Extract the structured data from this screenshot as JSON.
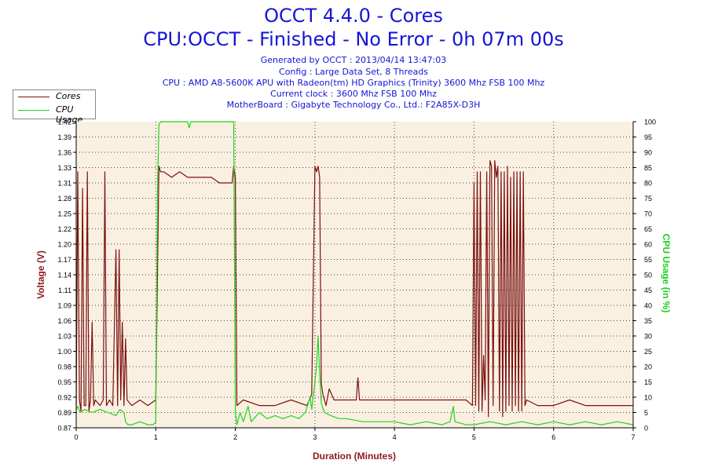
{
  "title": "OCCT 4.4.0 - Cores",
  "subtitle": "CPU:OCCT - Finished - No Error - 0h 07m 00s",
  "info_lines": [
    "Generated by OCCT : 2013/04/14 13:47:03",
    "Config : Large Data Set, 8 Threads",
    "CPU : AMD A8-5600K APU with Radeon(tm) HD Graphics (Trinity) 3600 Mhz FSB 100 Mhz",
    "Current clock : 3600 Mhz FSB 100 Mhz",
    "MotherBoard : Gigabyte Technology Co., Ltd.: F2A85X-D3H"
  ],
  "colors": {
    "cores": "#7a1010",
    "cpu_usage": "#1ed41e",
    "title": "#1515d6",
    "plot_bg": "#faf0e1",
    "left_axis": "#8b1a1a",
    "right_axis": "#19d019"
  },
  "chart_data": {
    "type": "line",
    "xlabel": "Duration (Minutes)",
    "ylabel": "Voltage (V)",
    "y2label": "CPU Usage (in %)",
    "xlim": [
      0,
      7
    ],
    "ylim": [
      0.87,
      1.42
    ],
    "y2lim": [
      0,
      100
    ],
    "x_ticks": [
      "0",
      "1",
      "2",
      "3",
      "4",
      "5",
      "6",
      "7"
    ],
    "y_ticks": [
      "0.87",
      "0.89",
      "0.92",
      "0.95",
      "0.98",
      "1.00",
      "1.03",
      "1.06",
      "1.09",
      "1.11",
      "1.14",
      "1.17",
      "1.20",
      "1.22",
      "1.25",
      "1.28",
      "1.31",
      "1.33",
      "1.36",
      "1.39",
      "1.42"
    ],
    "y2_ticks": [
      "0",
      "5",
      "10",
      "15",
      "20",
      "25",
      "30",
      "35",
      "40",
      "45",
      "50",
      "55",
      "60",
      "65",
      "70",
      "75",
      "80",
      "85",
      "90",
      "95",
      "100"
    ],
    "grid": true,
    "legend_position": "top-left",
    "series": [
      {
        "name": "Cores",
        "axis": "left",
        "points": [
          [
            0,
            0.91
          ],
          [
            0.02,
            1.33
          ],
          [
            0.04,
            0.92
          ],
          [
            0.06,
            0.9
          ],
          [
            0.08,
            1.3
          ],
          [
            0.1,
            0.91
          ],
          [
            0.12,
            0.91
          ],
          [
            0.14,
            1.33
          ],
          [
            0.16,
            0.9
          ],
          [
            0.18,
            0.92
          ],
          [
            0.2,
            1.06
          ],
          [
            0.22,
            0.91
          ],
          [
            0.24,
            0.92
          ],
          [
            0.3,
            0.91
          ],
          [
            0.34,
            0.92
          ],
          [
            0.36,
            1.33
          ],
          [
            0.38,
            0.91
          ],
          [
            0.42,
            0.92
          ],
          [
            0.46,
            0.91
          ],
          [
            0.5,
            1.19
          ],
          [
            0.52,
            0.91
          ],
          [
            0.54,
            1.19
          ],
          [
            0.56,
            0.92
          ],
          [
            0.58,
            1.06
          ],
          [
            0.6,
            0.91
          ],
          [
            0.62,
            1.03
          ],
          [
            0.64,
            0.92
          ],
          [
            0.7,
            0.91
          ],
          [
            0.8,
            0.92
          ],
          [
            0.9,
            0.91
          ],
          [
            1.0,
            0.92
          ],
          [
            1.04,
            1.34
          ],
          [
            1.06,
            1.33
          ],
          [
            1.1,
            1.33
          ],
          [
            1.2,
            1.32
          ],
          [
            1.3,
            1.33
          ],
          [
            1.4,
            1.32
          ],
          [
            1.5,
            1.32
          ],
          [
            1.6,
            1.32
          ],
          [
            1.7,
            1.32
          ],
          [
            1.8,
            1.31
          ],
          [
            1.9,
            1.31
          ],
          [
            1.96,
            1.31
          ],
          [
            1.98,
            1.34
          ],
          [
            2.0,
            1.32
          ],
          [
            2.02,
            0.91
          ],
          [
            2.1,
            0.92
          ],
          [
            2.3,
            0.91
          ],
          [
            2.5,
            0.91
          ],
          [
            2.7,
            0.92
          ],
          [
            2.9,
            0.91
          ],
          [
            2.96,
            0.93
          ],
          [
            3.0,
            1.34
          ],
          [
            3.02,
            1.33
          ],
          [
            3.04,
            1.34
          ],
          [
            3.06,
            1.32
          ],
          [
            3.08,
            0.95
          ],
          [
            3.1,
            0.93
          ],
          [
            3.14,
            0.91
          ],
          [
            3.18,
            0.94
          ],
          [
            3.24,
            0.92
          ],
          [
            3.4,
            0.92
          ],
          [
            3.52,
            0.92
          ],
          [
            3.54,
            0.96
          ],
          [
            3.56,
            0.92
          ],
          [
            3.7,
            0.92
          ],
          [
            3.9,
            0.92
          ],
          [
            4.1,
            0.92
          ],
          [
            4.3,
            0.92
          ],
          [
            4.5,
            0.92
          ],
          [
            4.7,
            0.92
          ],
          [
            4.9,
            0.92
          ],
          [
            4.98,
            0.91
          ],
          [
            5.0,
            1.31
          ],
          [
            5.02,
            0.91
          ],
          [
            5.04,
            1.33
          ],
          [
            5.06,
            0.9
          ],
          [
            5.08,
            1.33
          ],
          [
            5.1,
            0.9
          ],
          [
            5.12,
            1.0
          ],
          [
            5.14,
            0.92
          ],
          [
            5.16,
            1.33
          ],
          [
            5.18,
            0.89
          ],
          [
            5.2,
            1.35
          ],
          [
            5.22,
            1.34
          ],
          [
            5.24,
            0.91
          ],
          [
            5.26,
            1.35
          ],
          [
            5.28,
            1.32
          ],
          [
            5.3,
            1.34
          ],
          [
            5.32,
            0.9
          ],
          [
            5.34,
            1.33
          ],
          [
            5.36,
            0.89
          ],
          [
            5.38,
            1.33
          ],
          [
            5.4,
            0.9
          ],
          [
            5.42,
            1.34
          ],
          [
            5.44,
            0.91
          ],
          [
            5.46,
            1.32
          ],
          [
            5.48,
            0.9
          ],
          [
            5.5,
            1.33
          ],
          [
            5.52,
            0.91
          ],
          [
            5.54,
            1.33
          ],
          [
            5.56,
            0.9
          ],
          [
            5.58,
            1.33
          ],
          [
            5.6,
            0.9
          ],
          [
            5.62,
            1.33
          ],
          [
            5.64,
            0.91
          ],
          [
            5.66,
            0.92
          ],
          [
            5.8,
            0.91
          ],
          [
            6.0,
            0.91
          ],
          [
            6.2,
            0.92
          ],
          [
            6.4,
            0.91
          ],
          [
            6.6,
            0.91
          ],
          [
            6.8,
            0.91
          ],
          [
            7.0,
            0.91
          ]
        ]
      },
      {
        "name": "CPU Usage",
        "axis": "right",
        "points": [
          [
            0,
            6
          ],
          [
            0.02,
            7
          ],
          [
            0.05,
            5
          ],
          [
            0.1,
            6
          ],
          [
            0.2,
            5
          ],
          [
            0.3,
            6
          ],
          [
            0.4,
            5
          ],
          [
            0.5,
            4
          ],
          [
            0.55,
            6
          ],
          [
            0.6,
            5
          ],
          [
            0.62,
            2
          ],
          [
            0.65,
            1
          ],
          [
            0.7,
            1
          ],
          [
            0.8,
            2
          ],
          [
            0.9,
            1
          ],
          [
            0.97,
            1
          ],
          [
            1.0,
            2
          ],
          [
            1.02,
            75
          ],
          [
            1.04,
            99
          ],
          [
            1.06,
            100
          ],
          [
            1.2,
            100
          ],
          [
            1.4,
            100
          ],
          [
            1.42,
            98
          ],
          [
            1.44,
            100
          ],
          [
            1.6,
            100
          ],
          [
            1.8,
            100
          ],
          [
            1.95,
            100
          ],
          [
            1.98,
            100
          ],
          [
            2.0,
            5
          ],
          [
            2.02,
            1
          ],
          [
            2.06,
            5
          ],
          [
            2.1,
            2
          ],
          [
            2.16,
            7
          ],
          [
            2.2,
            2
          ],
          [
            2.3,
            5
          ],
          [
            2.4,
            3
          ],
          [
            2.5,
            4
          ],
          [
            2.6,
            3
          ],
          [
            2.7,
            4
          ],
          [
            2.8,
            3
          ],
          [
            2.88,
            5
          ],
          [
            2.94,
            10
          ],
          [
            2.96,
            6
          ],
          [
            3.0,
            15
          ],
          [
            3.02,
            20
          ],
          [
            3.04,
            30
          ],
          [
            3.06,
            18
          ],
          [
            3.08,
            8
          ],
          [
            3.12,
            5
          ],
          [
            3.2,
            4
          ],
          [
            3.3,
            3
          ],
          [
            3.4,
            3
          ],
          [
            3.6,
            2
          ],
          [
            3.8,
            2
          ],
          [
            4.0,
            2
          ],
          [
            4.2,
            1
          ],
          [
            4.4,
            2
          ],
          [
            4.6,
            1
          ],
          [
            4.7,
            2
          ],
          [
            4.74,
            7
          ],
          [
            4.76,
            2
          ],
          [
            4.9,
            1
          ],
          [
            5.0,
            1
          ],
          [
            5.2,
            2
          ],
          [
            5.4,
            1
          ],
          [
            5.6,
            2
          ],
          [
            5.8,
            1
          ],
          [
            6.0,
            2
          ],
          [
            6.2,
            1
          ],
          [
            6.4,
            2
          ],
          [
            6.6,
            1
          ],
          [
            6.8,
            2
          ],
          [
            7.0,
            1
          ]
        ]
      }
    ]
  }
}
